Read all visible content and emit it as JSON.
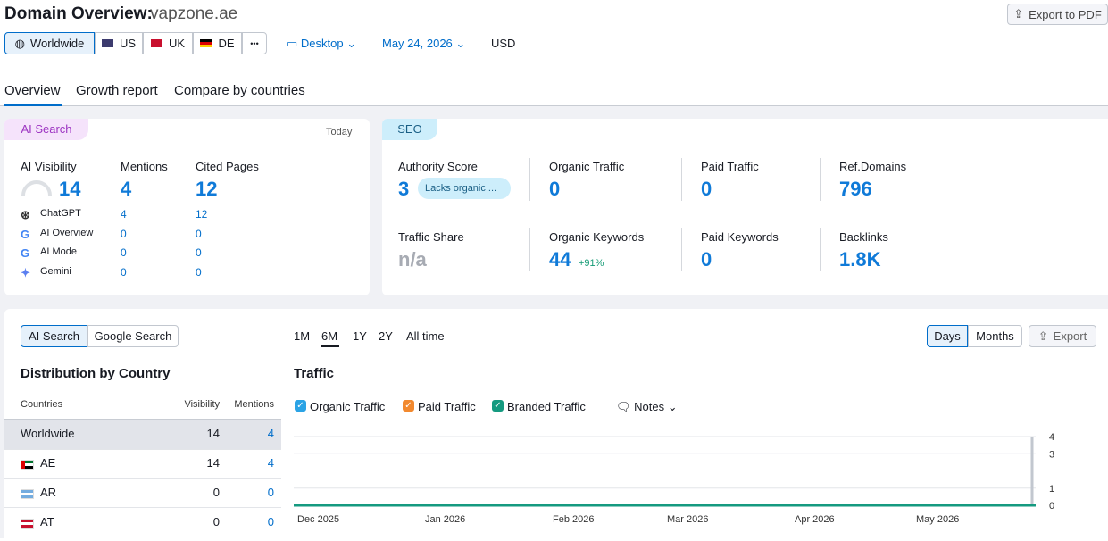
{
  "header": {
    "title": "Domain Overview:",
    "domain": "vapzone.ae",
    "export": "Export to PDF"
  },
  "filters": {
    "regions": [
      "Worldwide",
      "US",
      "UK",
      "DE"
    ],
    "more": "•••",
    "device": "Desktop",
    "date": "May 24, 2026",
    "currency": "USD"
  },
  "tabs": [
    "Overview",
    "Growth report",
    "Compare by countries"
  ],
  "ai_card": {
    "tag": "AI Search",
    "when": "Today",
    "metrics": [
      {
        "label": "AI Visibility",
        "value": 14
      },
      {
        "label": "Mentions",
        "value": 4
      },
      {
        "label": "Cited Pages",
        "value": 12
      }
    ],
    "rows": [
      {
        "name": "ChatGPT",
        "mentions": 4,
        "cited": 12
      },
      {
        "name": "AI Overview",
        "mentions": 0,
        "cited": 0
      },
      {
        "name": "AI Mode",
        "mentions": 0,
        "cited": 0
      },
      {
        "name": "Gemini",
        "mentions": 0,
        "cited": 0
      }
    ]
  },
  "seo_card": {
    "tag": "SEO",
    "metrics": [
      {
        "label": "Authority Score",
        "value": 3,
        "badge": "Lacks organic ..."
      },
      {
        "label": "Organic Traffic",
        "value": 0
      },
      {
        "label": "Paid Traffic",
        "value": 0
      },
      {
        "label": "Ref.Domains",
        "value": 796
      },
      {
        "label": "Traffic Share",
        "value": "n/a"
      },
      {
        "label": "Organic Keywords",
        "value": 44,
        "change": "+91%"
      },
      {
        "label": "Paid Keywords",
        "value": 0
      },
      {
        "label": "Backlinks",
        "value": "1.8K"
      }
    ]
  },
  "distribution": {
    "toggle": [
      "AI Search",
      "Google Search"
    ],
    "title": "Distribution by Country",
    "columns": [
      "Countries",
      "Visibility",
      "Mentions"
    ],
    "rows": [
      [
        "Worldwide",
        14,
        4
      ],
      [
        "AE",
        14,
        4
      ],
      [
        "AR",
        0,
        0
      ],
      [
        "AT",
        0,
        0
      ]
    ]
  },
  "traffic": {
    "periods": [
      "1M",
      "6M",
      "1Y",
      "2Y",
      "All time"
    ],
    "granularity": [
      "Days",
      "Months"
    ],
    "export": "Export",
    "title": "Traffic",
    "legend": [
      "Organic Traffic",
      "Paid Traffic",
      "Branded Traffic"
    ],
    "notes": "Notes",
    "x_labels": [
      "Dec 2025",
      "Jan 2026",
      "Feb 2026",
      "Mar 2026",
      "Apr 2026",
      "May 2026"
    ],
    "ylim": [
      0,
      4
    ],
    "yticks": [
      0,
      1,
      3,
      4
    ]
  }
}
